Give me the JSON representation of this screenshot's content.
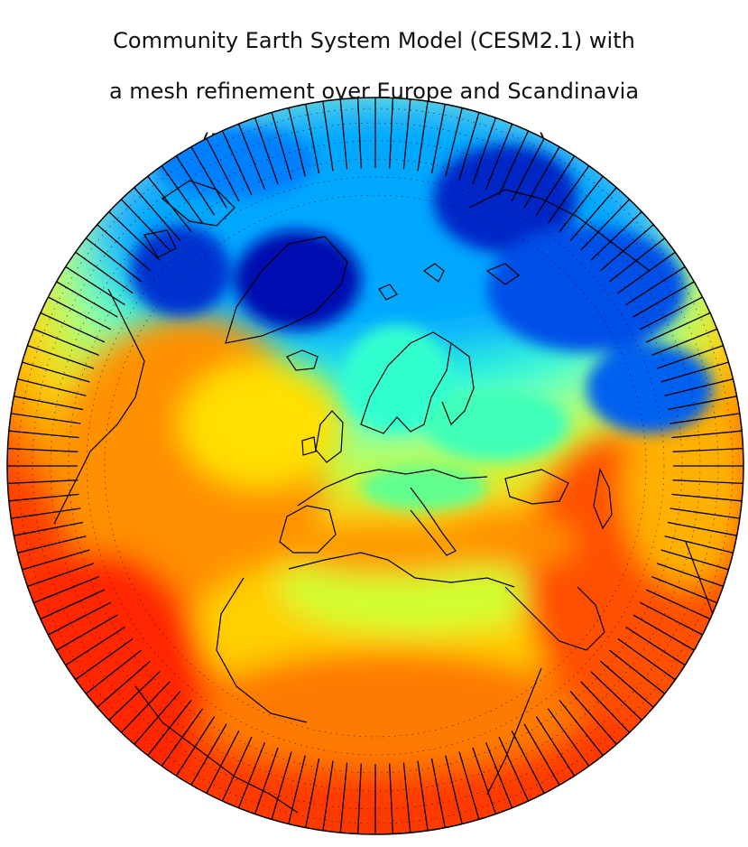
{
  "figure": {
    "title_lines": [
      "Community Earth System Model (CESM2.1) with",
      "a mesh refinement over Europe and Scandinavia",
      "(Reference height temperature)"
    ]
  },
  "map": {
    "projection": "orthographic",
    "center_region": "Europe and Scandinavia",
    "colormap": "jet",
    "colors": {
      "cold": "#00008f",
      "cool": "#0070ff",
      "mild": "#00ffff",
      "temperate": "#a0ff60",
      "warm": "#ffff00",
      "hot": "#ff9900",
      "very_hot": "#ff2000",
      "coastline": "#000000",
      "mesh": "#000000"
    },
    "mesh_overlay": true,
    "coastlines": true
  }
}
